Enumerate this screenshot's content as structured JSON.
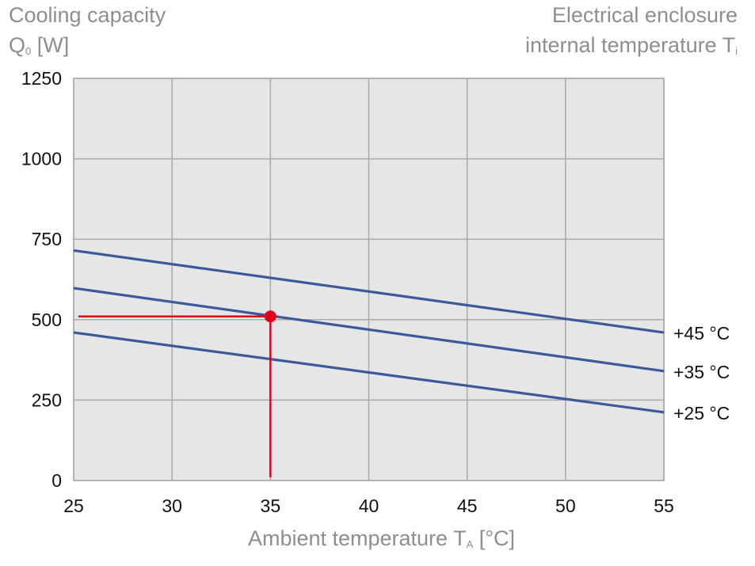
{
  "titles": {
    "y_title_line1": "Cooling capacity",
    "y_title_line2_main": "Q",
    "y_title_line2_sub": "0",
    "y_title_line2_unit": " [W]",
    "legend_title_line1": "Electrical enclosure",
    "legend_title_line2_main": "internal temperature T",
    "legend_title_line2_sub": "i",
    "x_title_main": "Ambient temperature T",
    "x_title_sub": "A",
    "x_title_unit": " [°C]"
  },
  "colors": {
    "series": "#3b5a9a",
    "marker": "#e2001a",
    "plot_bg": "#e6e6e6",
    "grid": "#a9a9a9",
    "title_gray": "#8e8e8e"
  },
  "chart_data": {
    "type": "line",
    "xlabel": "Ambient temperature TA [°C]",
    "ylabel": "Cooling capacity Q0 [W]",
    "legend_title": "Electrical enclosure internal temperature Ti",
    "xlim": [
      25,
      55
    ],
    "ylim": [
      0,
      1250
    ],
    "x_ticks": [
      "25",
      "30",
      "35",
      "40",
      "45",
      "50",
      "55"
    ],
    "y_ticks": [
      "0",
      "250",
      "500",
      "750",
      "1000",
      "1250"
    ],
    "x_tick_values": [
      25,
      30,
      35,
      40,
      45,
      50,
      55
    ],
    "y_tick_values": [
      0,
      250,
      500,
      750,
      1000,
      1250
    ],
    "grid": true,
    "series": [
      {
        "name": "+45 °C",
        "x": [
          25,
          55
        ],
        "values": [
          715,
          460
        ]
      },
      {
        "name": "+35 °C",
        "x": [
          25,
          55
        ],
        "values": [
          598,
          340
        ]
      },
      {
        "name": "+25 °C",
        "x": [
          25,
          55
        ],
        "values": [
          460,
          212
        ]
      }
    ],
    "annotation": {
      "x": 35,
      "y": 510,
      "series": "+35 °C"
    }
  }
}
